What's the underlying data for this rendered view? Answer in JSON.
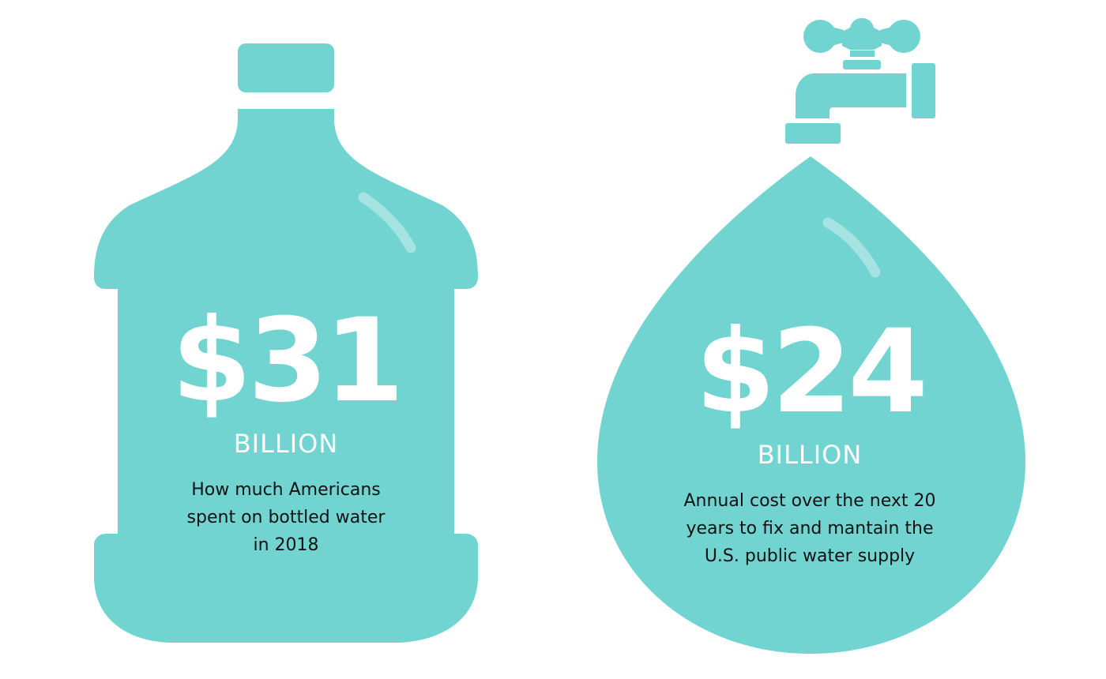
{
  "colors": {
    "teal": "#72D4D1",
    "highlight": "#A4E3E1",
    "white": "#FFFFFF",
    "caption_text": "#111111"
  },
  "bottled_water": {
    "amount": "$31",
    "unit": "BILLION",
    "caption_lines": [
      "How much Americans",
      "spent on bottled water",
      "in 2018"
    ],
    "icon": "water-jug-icon"
  },
  "public_water": {
    "amount": "$24",
    "unit": "BILLION",
    "caption_lines": [
      "Annual cost over the next 20",
      "years to fix and mantain the",
      "U.S. public water supply"
    ],
    "icons": [
      "faucet-icon",
      "water-drop-icon"
    ]
  }
}
